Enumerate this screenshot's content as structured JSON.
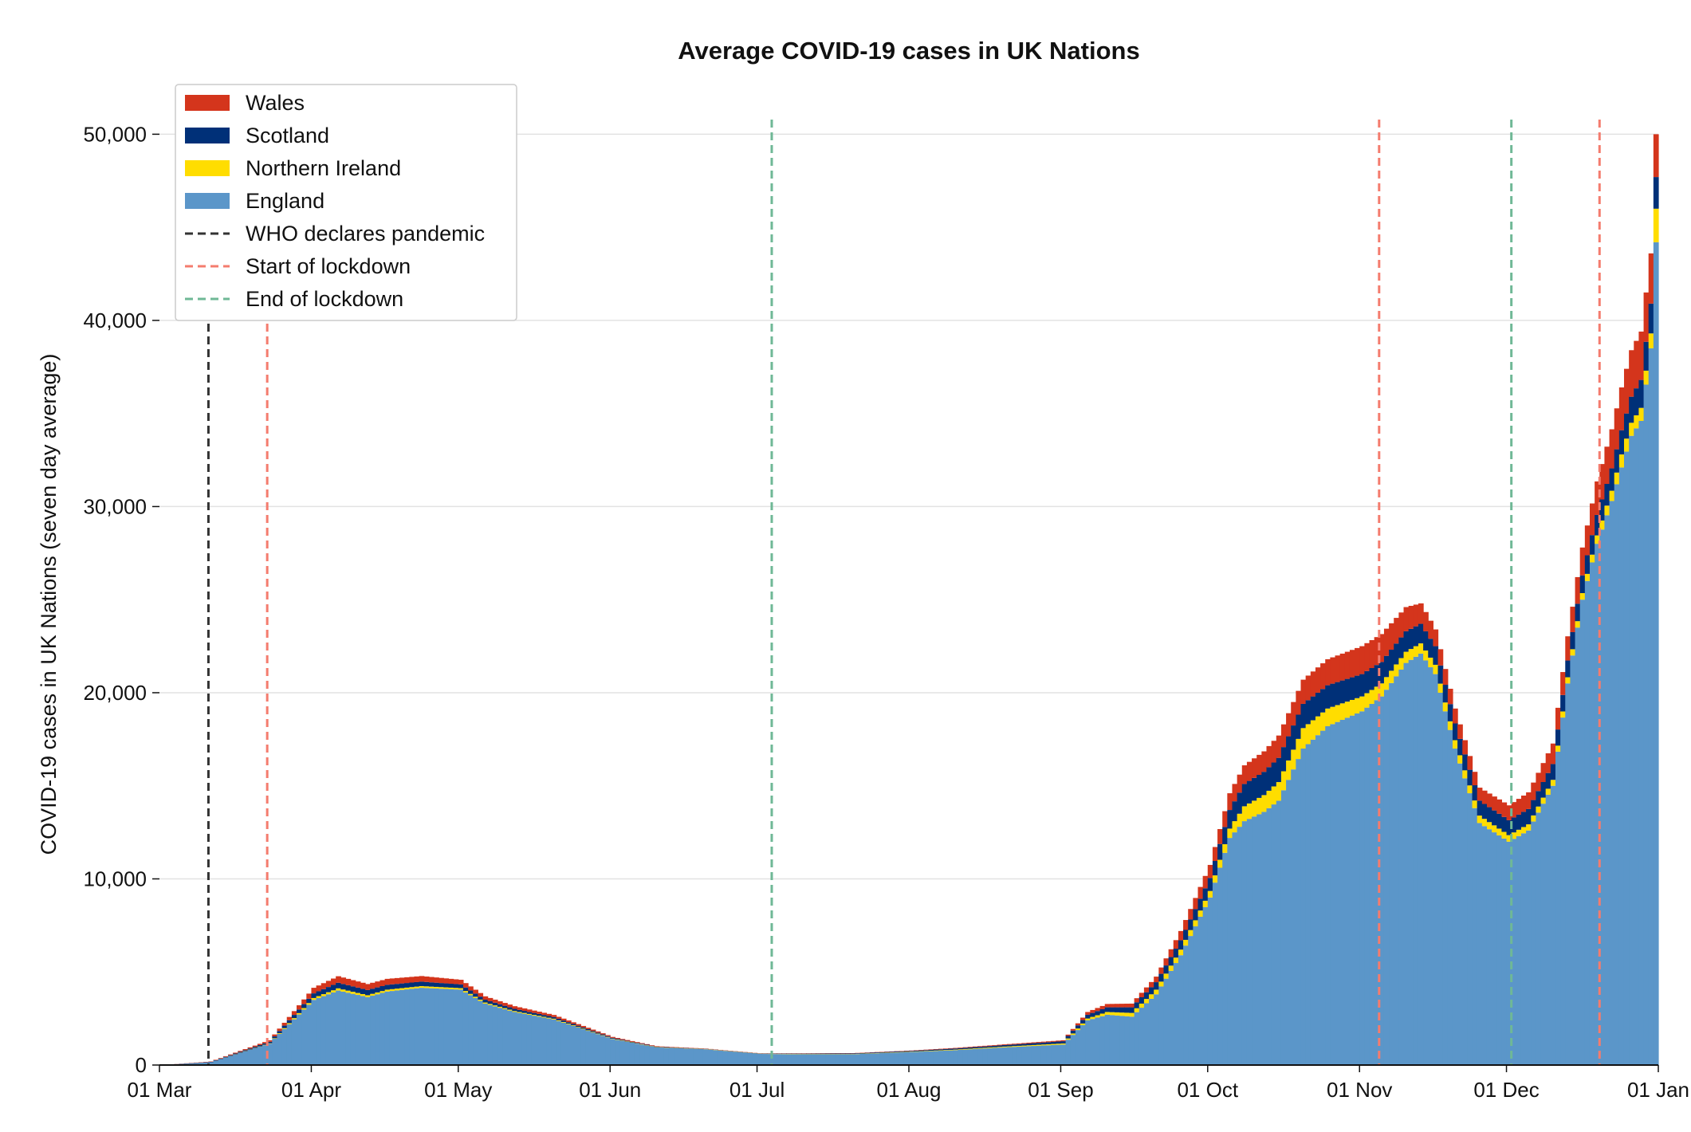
{
  "chart_data": {
    "type": "area",
    "stacked": true,
    "title": "Average COVID-19 cases in UK Nations",
    "ylabel": "COVID-19 cases in UK Nations (seven day average)",
    "xlabel": "",
    "x_range": [
      "2020-03-01",
      "2021-01-01"
    ],
    "ylim": [
      0,
      52500
    ],
    "y_ticks": [
      0,
      10000,
      20000,
      30000,
      40000,
      50000
    ],
    "y_tick_labels": [
      "0",
      "10,000",
      "20,000",
      "30,000",
      "40,000",
      "50,000"
    ],
    "x_ticks": [
      "2020-03-01",
      "2020-04-01",
      "2020-05-01",
      "2020-06-01",
      "2020-07-01",
      "2020-08-01",
      "2020-09-01",
      "2020-10-01",
      "2020-11-01",
      "2020-12-01",
      "2021-01-01"
    ],
    "x_tick_labels": [
      "01 Mar",
      "01 Apr",
      "01 May",
      "01 Jun",
      "01 Jul",
      "01 Aug",
      "01 Sep",
      "01 Oct",
      "01 Nov",
      "01 Dec",
      "01 Jan"
    ],
    "grid": "horizontal",
    "legend_position": "top-left",
    "legend": [
      "Wales",
      "Scotland",
      "Northern Ireland",
      "England",
      "WHO declares pandemic",
      "Start of lockdown",
      "End of lockdown"
    ],
    "dates": [
      "2020-03-01",
      "2020-03-11",
      "2020-03-23",
      "2020-04-01",
      "2020-04-06",
      "2020-04-12",
      "2020-04-16",
      "2020-04-23",
      "2020-05-01",
      "2020-05-06",
      "2020-05-12",
      "2020-05-20",
      "2020-06-01",
      "2020-06-10",
      "2020-06-20",
      "2020-07-01",
      "2020-07-10",
      "2020-07-20",
      "2020-08-01",
      "2020-08-10",
      "2020-08-20",
      "2020-09-01",
      "2020-09-06",
      "2020-09-10",
      "2020-09-15",
      "2020-09-20",
      "2020-09-25",
      "2020-10-01",
      "2020-10-05",
      "2020-10-08",
      "2020-10-12",
      "2020-10-15",
      "2020-10-20",
      "2020-10-25",
      "2020-11-01",
      "2020-11-05",
      "2020-11-10",
      "2020-11-13",
      "2020-11-16",
      "2020-11-20",
      "2020-11-25",
      "2020-12-01",
      "2020-12-05",
      "2020-12-10",
      "2020-12-13",
      "2020-12-16",
      "2020-12-19",
      "2020-12-22",
      "2020-12-24",
      "2020-12-26",
      "2020-12-28",
      "2020-12-30",
      "2020-12-31"
    ],
    "series": [
      {
        "name": "England",
        "color": "#5b96c9",
        "values": [
          0,
          150,
          1150,
          3500,
          4000,
          3650,
          3950,
          4150,
          4050,
          3300,
          2850,
          2450,
          1400,
          950,
          850,
          600,
          580,
          580,
          700,
          800,
          950,
          1100,
          2400,
          2700,
          2600,
          3800,
          5900,
          9000,
          12200,
          13100,
          13600,
          14200,
          17000,
          18200,
          19000,
          19800,
          21600,
          22100,
          21000,
          17000,
          13000,
          12000,
          12600,
          15000,
          20500,
          25000,
          28000,
          30300,
          32100,
          33800,
          34600,
          38500,
          44200
        ]
      },
      {
        "name": "Northern Ireland",
        "color": "#ffdd00",
        "values": [
          0,
          0,
          20,
          100,
          120,
          100,
          100,
          90,
          80,
          60,
          50,
          40,
          20,
          15,
          10,
          10,
          15,
          15,
          20,
          30,
          40,
          60,
          100,
          150,
          200,
          250,
          300,
          350,
          500,
          800,
          900,
          1000,
          1100,
          950,
          800,
          700,
          600,
          550,
          500,
          450,
          400,
          350,
          330,
          320,
          330,
          350,
          450,
          550,
          700,
          700,
          700,
          800,
          1800
        ]
      },
      {
        "name": "Scotland",
        "color": "#003078",
        "values": [
          0,
          20,
          80,
          250,
          300,
          280,
          260,
          240,
          200,
          150,
          120,
          90,
          40,
          20,
          10,
          10,
          20,
          30,
          40,
          60,
          80,
          120,
          200,
          250,
          300,
          400,
          500,
          700,
          1000,
          1200,
          1250,
          1300,
          1300,
          1250,
          1200,
          1150,
          1100,
          1050,
          1000,
          900,
          800,
          800,
          820,
          850,
          900,
          950,
          1100,
          1200,
          1300,
          1400,
          1500,
          1600,
          1700
        ]
      },
      {
        "name": "Wales",
        "color": "#d4351c",
        "values": [
          0,
          20,
          80,
          300,
          350,
          320,
          320,
          300,
          250,
          180,
          140,
          110,
          50,
          25,
          15,
          10,
          15,
          15,
          20,
          30,
          40,
          50,
          150,
          180,
          200,
          300,
          500,
          700,
          900,
          1000,
          1100,
          1200,
          1300,
          1400,
          1500,
          1500,
          1300,
          1100,
          900,
          800,
          700,
          800,
          900,
          1100,
          1300,
          1500,
          1800,
          2100,
          2300,
          2500,
          2600,
          2700,
          2300
        ]
      }
    ],
    "events": [
      {
        "name": "WHO declares pandemic",
        "date": "2020-03-11",
        "color": "#333333"
      },
      {
        "name": "Start of lockdown",
        "date": "2020-03-23",
        "color": "#f47c6e"
      },
      {
        "name": "End of lockdown",
        "date": "2020-07-04",
        "color": "#6fb896"
      },
      {
        "name": "Start of lockdown",
        "date": "2020-11-05",
        "color": "#f47c6e"
      },
      {
        "name": "End of lockdown",
        "date": "2020-12-02",
        "color": "#6fb896"
      },
      {
        "name": "Start of lockdown",
        "date": "2020-12-20",
        "color": "#f47c6e"
      }
    ]
  }
}
